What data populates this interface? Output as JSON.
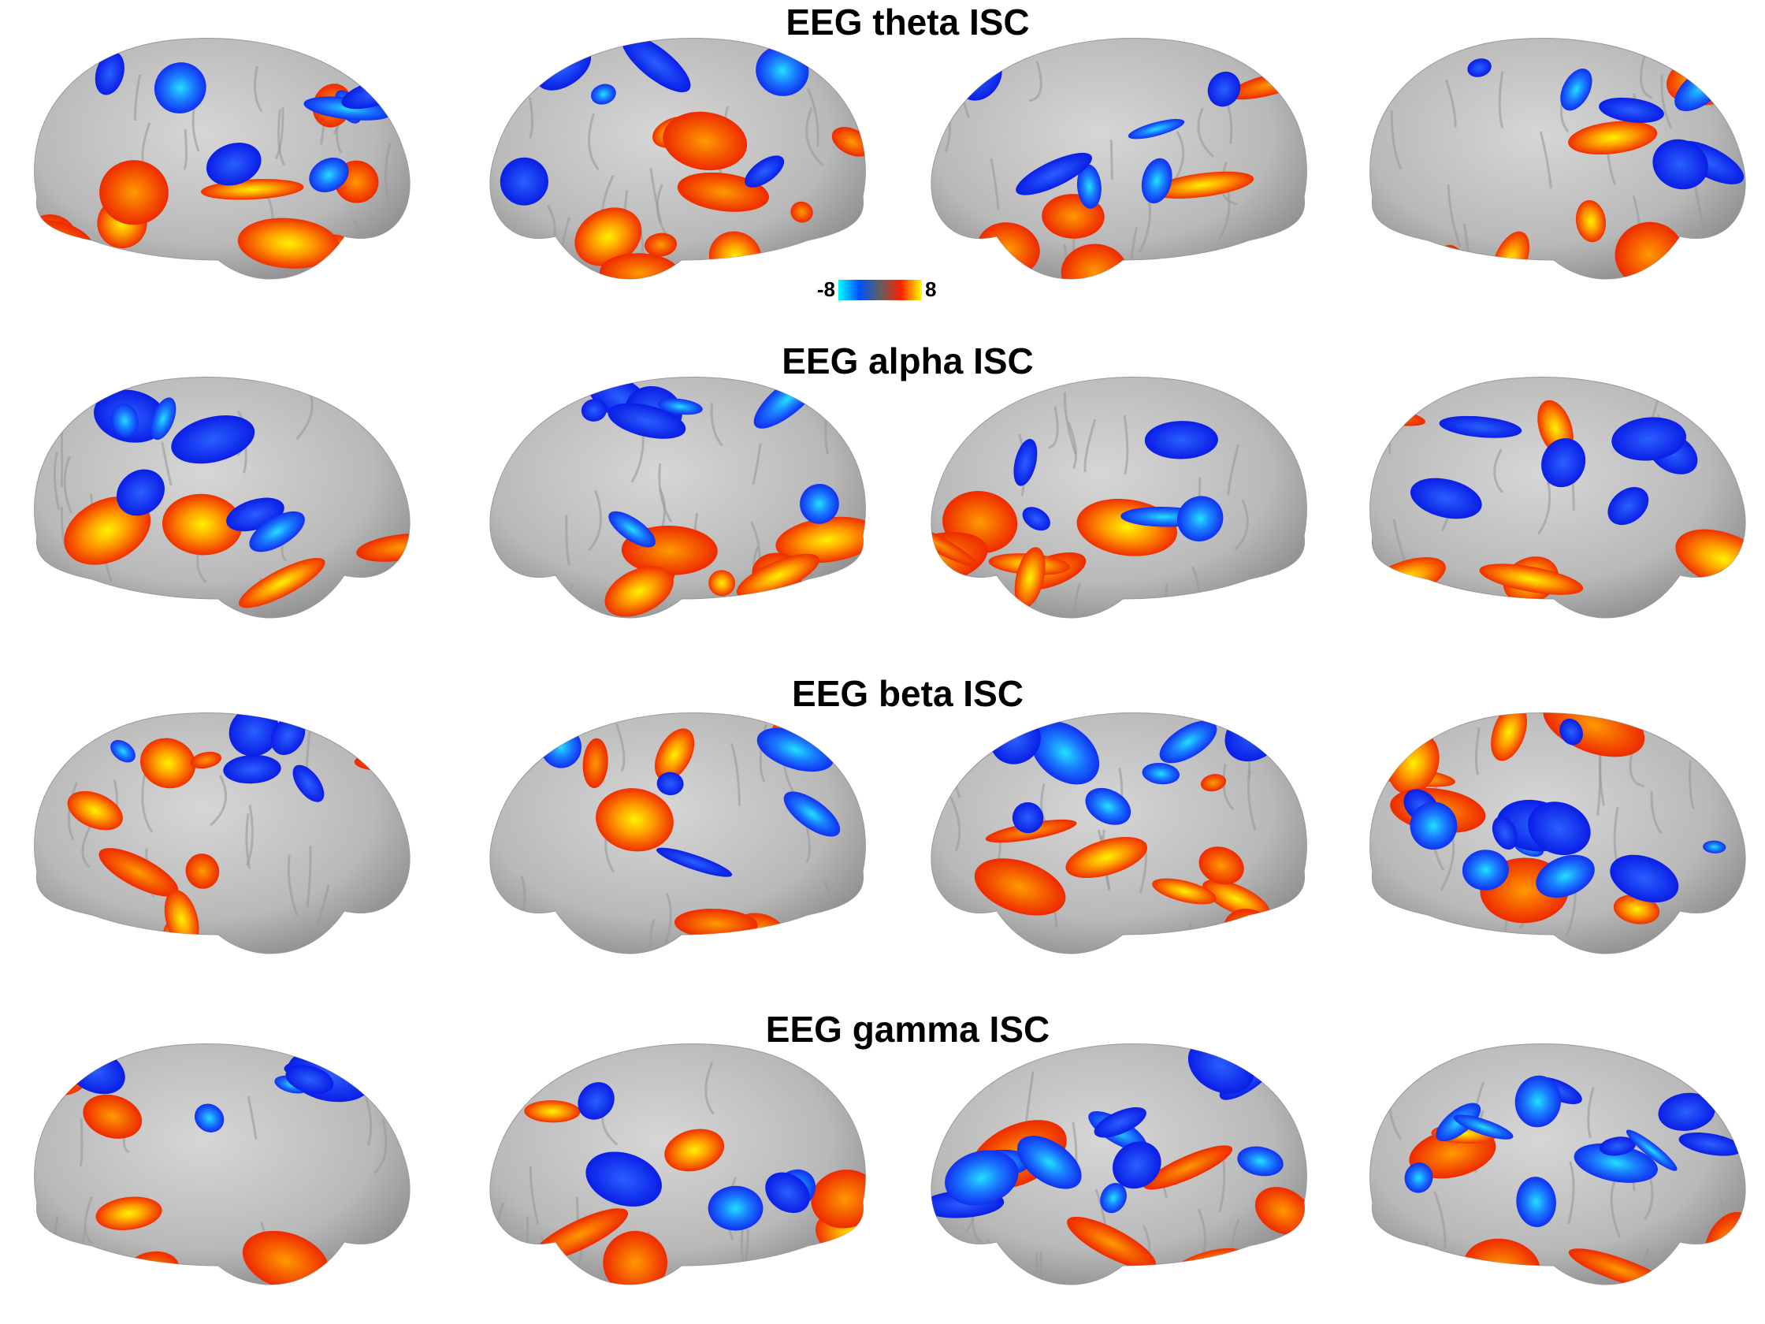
{
  "rows": [
    {
      "title": "EEG theta ISC"
    },
    {
      "title": "EEG alpha ISC"
    },
    {
      "title": "EEG beta ISC"
    },
    {
      "title": "EEG gamma ISC"
    }
  ],
  "colorbar": {
    "min": -8,
    "max": 8
  }
}
